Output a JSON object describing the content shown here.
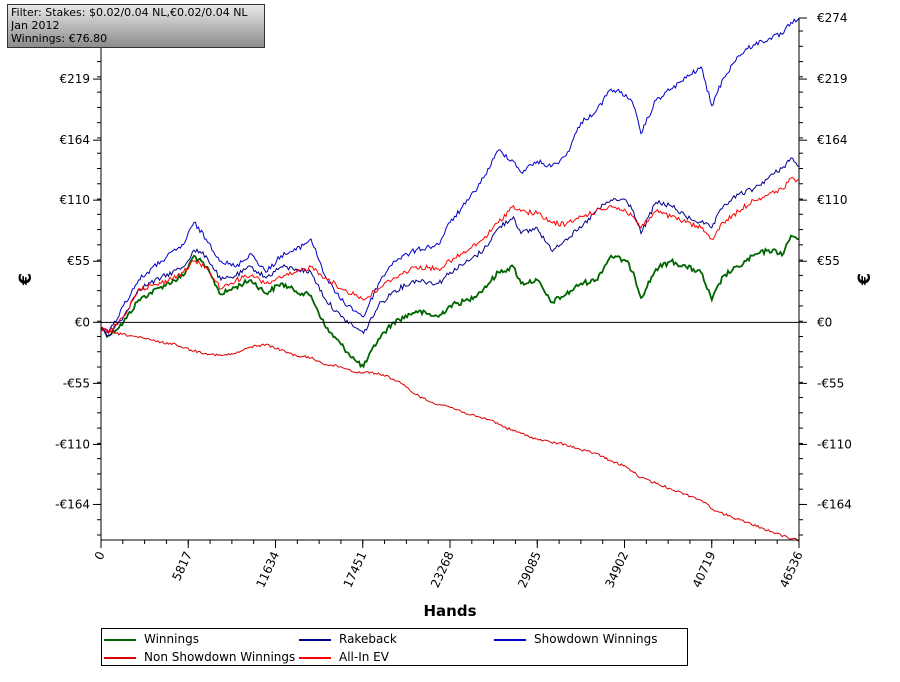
{
  "filter": {
    "line1": "Filter: Stakes: $0.02/0.04 NL,€0.02/0.04 NL",
    "line2": "Jan 2012",
    "line3": "Winnings: €76.80"
  },
  "colors": {
    "winnings": "#006400",
    "rakeback": "#00008b",
    "showdown": "#0000cd",
    "non_showdown": "#dd0000",
    "allin_ev": "#ff0000"
  },
  "chart_data": {
    "type": "line",
    "xlabel": "Hands",
    "ylabel": "€",
    "ylim": [
      -196,
      274
    ],
    "xlim": [
      0,
      46536
    ],
    "grid": false,
    "legend_placement": "bottom",
    "y_ticks": [
      274,
      219,
      164,
      110,
      55,
      0,
      -55,
      -110,
      -164
    ],
    "y_tick_labels": [
      "€274",
      "€219",
      "€164",
      "€110",
      "€55",
      "€0",
      "-€55",
      "-€110",
      "-€164"
    ],
    "x_ticks": [
      0,
      5817,
      11634,
      17451,
      23268,
      29085,
      34902,
      40719,
      46536
    ],
    "x_tick_labels": [
      "0",
      "5817",
      "11634",
      "17451",
      "23268",
      "29085",
      "34902",
      "40719",
      "46536"
    ],
    "series": [
      {
        "name": "Winnings",
        "color_key": "winnings",
        "x": [
          0,
          500,
          1500,
          2500,
          4000,
          5500,
          6200,
          7000,
          8000,
          9000,
          10000,
          11000,
          12000,
          13000,
          14000,
          15000,
          16000,
          17000,
          17500,
          18500,
          19500,
          21000,
          22500,
          23268,
          24500,
          25500,
          26500,
          27500,
          28000,
          29085,
          30000,
          31000,
          32000,
          33000,
          34000,
          35000,
          35500,
          36000,
          37000,
          38000,
          39000,
          40000,
          40719,
          41500,
          42500,
          43500,
          44500,
          45500,
          46000,
          46536
        ],
        "y": [
          -5,
          -12,
          0,
          20,
          32,
          42,
          60,
          50,
          25,
          32,
          38,
          26,
          35,
          28,
          24,
          -5,
          -20,
          -35,
          -40,
          -15,
          0,
          10,
          5,
          15,
          20,
          30,
          45,
          50,
          35,
          38,
          18,
          25,
          35,
          38,
          60,
          55,
          45,
          22,
          48,
          55,
          50,
          45,
          20,
          42,
          50,
          60,
          65,
          62,
          78,
          75
        ]
      },
      {
        "name": "Rakeback",
        "color_key": "rakeback",
        "x": [
          0,
          500,
          1500,
          2500,
          4000,
          5500,
          6200,
          7000,
          8000,
          9000,
          10000,
          11000,
          12000,
          13000,
          14000,
          15000,
          16000,
          17000,
          17500,
          18500,
          19500,
          21000,
          22500,
          23268,
          24500,
          25500,
          26500,
          27500,
          28000,
          29085,
          30000,
          31000,
          32000,
          33000,
          34000,
          35000,
          35500,
          36000,
          37000,
          38000,
          39000,
          40000,
          40719,
          41500,
          42500,
          43500,
          44500,
          45500,
          46000,
          46536
        ],
        "y": [
          -5,
          -12,
          5,
          30,
          40,
          50,
          65,
          60,
          38,
          42,
          50,
          40,
          50,
          48,
          45,
          20,
          5,
          -5,
          -10,
          15,
          28,
          38,
          35,
          45,
          55,
          65,
          85,
          95,
          80,
          85,
          65,
          75,
          85,
          100,
          110,
          110,
          100,
          80,
          108,
          105,
          95,
          90,
          85,
          105,
          115,
          120,
          130,
          140,
          148,
          140
        ]
      },
      {
        "name": "Showdown Winnings",
        "color_key": "showdown",
        "x": [
          0,
          500,
          1500,
          2500,
          4000,
          5500,
          6200,
          7000,
          8000,
          9000,
          10000,
          11000,
          12000,
          13000,
          14000,
          15000,
          16000,
          17000,
          17500,
          18500,
          19500,
          21000,
          22500,
          23268,
          24500,
          25500,
          26500,
          27500,
          28000,
          29085,
          30000,
          31000,
          32000,
          33000,
          34000,
          35000,
          35500,
          36000,
          37000,
          38000,
          39000,
          40000,
          40719,
          41500,
          42500,
          43500,
          44500,
          45500,
          46000,
          46536
        ],
        "y": [
          -5,
          -10,
          15,
          38,
          55,
          70,
          90,
          75,
          55,
          50,
          62,
          45,
          60,
          65,
          75,
          40,
          20,
          10,
          5,
          35,
          55,
          65,
          70,
          90,
          110,
          130,
          155,
          145,
          135,
          145,
          140,
          150,
          180,
          190,
          210,
          205,
          195,
          170,
          200,
          210,
          220,
          230,
          195,
          220,
          240,
          250,
          255,
          260,
          270,
          274
        ]
      },
      {
        "name": "Non Showdown Winnings",
        "color_key": "non_showdown",
        "x": [
          0,
          500,
          1000,
          2000,
          3000,
          4000,
          5000,
          6000,
          7000,
          8000,
          9000,
          10000,
          11000,
          12000,
          13000,
          14000,
          15000,
          16000,
          17000,
          18000,
          19000,
          20000,
          21000,
          22000,
          23000,
          24000,
          25000,
          26000,
          27000,
          28000,
          29000,
          30000,
          31000,
          32000,
          33000,
          34000,
          35000,
          36000,
          37000,
          38000,
          39000,
          40000,
          41000,
          42000,
          43000,
          44000,
          45000,
          46000,
          46536
        ],
        "y": [
          -5,
          -8,
          -10,
          -12,
          -15,
          -18,
          -20,
          -25,
          -28,
          -30,
          -28,
          -22,
          -20,
          -25,
          -30,
          -32,
          -38,
          -40,
          -45,
          -45,
          -48,
          -55,
          -65,
          -72,
          -75,
          -80,
          -85,
          -88,
          -95,
          -100,
          -105,
          -108,
          -110,
          -115,
          -118,
          -125,
          -130,
          -140,
          -145,
          -150,
          -155,
          -160,
          -170,
          -175,
          -180,
          -185,
          -190,
          -195,
          -196
        ]
      },
      {
        "name": "All-In EV",
        "color_key": "allin_ev",
        "x": [
          0,
          500,
          1500,
          2500,
          4000,
          5500,
          6200,
          7000,
          8000,
          9000,
          10000,
          11000,
          12000,
          13000,
          14000,
          15000,
          16000,
          17000,
          17500,
          18500,
          19500,
          21000,
          22500,
          23268,
          24500,
          25500,
          26500,
          27500,
          28000,
          29085,
          30000,
          31000,
          32000,
          33000,
          34000,
          35000,
          35500,
          36000,
          37000,
          38000,
          39000,
          40000,
          40719,
          41500,
          42500,
          43500,
          44500,
          45500,
          46000,
          46536
        ],
        "y": [
          -5,
          -10,
          5,
          30,
          35,
          45,
          55,
          50,
          30,
          38,
          42,
          35,
          40,
          45,
          50,
          40,
          30,
          25,
          20,
          30,
          40,
          50,
          48,
          55,
          65,
          75,
          90,
          105,
          100,
          98,
          90,
          88,
          95,
          100,
          105,
          100,
          95,
          85,
          100,
          95,
          90,
          85,
          75,
          90,
          100,
          110,
          115,
          120,
          130,
          128
        ]
      }
    ]
  },
  "legend": [
    {
      "label": "Winnings",
      "color_key": "winnings"
    },
    {
      "label": "Rakeback",
      "color_key": "rakeback"
    },
    {
      "label": "Showdown Winnings",
      "color_key": "showdown"
    },
    {
      "label": "Non Showdown Winnings",
      "color_key": "non_showdown"
    },
    {
      "label": "All-In EV",
      "color_key": "allin_ev"
    }
  ]
}
